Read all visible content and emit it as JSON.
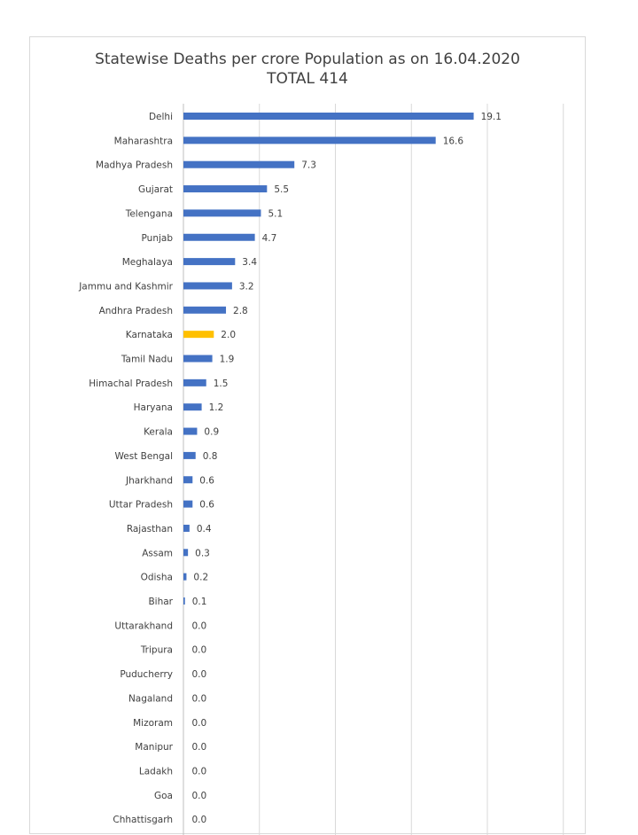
{
  "chart_data": {
    "type": "bar",
    "orientation": "horizontal",
    "title": "Statewise Deaths per crore Population as on 16.04.2020",
    "subtitle": "TOTAL 414",
    "xlabel": "",
    "ylabel": "",
    "xlim": [
      0,
      25
    ],
    "grid": "vertical",
    "legend": "none",
    "bar_color": "#4472c4",
    "highlight_color": "#ffc000",
    "highlight_category": "Karnataka",
    "categories": [
      "Delhi",
      "Maharashtra",
      "Madhya Pradesh",
      "Gujarat",
      "Telengana",
      "Punjab",
      "Meghalaya",
      "Jammu and Kashmir",
      "Andhra Pradesh",
      "Karnataka",
      "Tamil Nadu",
      "Himachal Pradesh",
      "Haryana",
      "Kerala",
      "West Bengal",
      "Jharkhand",
      "Uttar Pradesh",
      "Rajasthan",
      "Assam",
      "Odisha",
      "Bihar",
      "Uttarakhand",
      "Tripura",
      "Puducherry",
      "Nagaland",
      "Mizoram",
      "Manipur",
      "Ladakh",
      "Goa",
      "Chhattisgarh"
    ],
    "values": [
      19.1,
      16.6,
      7.3,
      5.5,
      5.1,
      4.7,
      3.4,
      3.2,
      2.8,
      2.0,
      1.9,
      1.5,
      1.2,
      0.9,
      0.8,
      0.6,
      0.6,
      0.4,
      0.3,
      0.2,
      0.1,
      0.0,
      0.0,
      0.0,
      0.0,
      0.0,
      0.0,
      0.0,
      0.0,
      0.0
    ],
    "value_labels": [
      "19.1",
      "16.6",
      "7.3",
      "5.5",
      "5.1",
      "4.7",
      "3.4",
      "3.2",
      "2.8",
      "2.0",
      "1.9",
      "1.5",
      "1.2",
      "0.9",
      "0.8",
      "0.6",
      "0.6",
      "0.4",
      "0.3",
      "0.2",
      "0.1",
      "0.0",
      "0.0",
      "0.0",
      "0.0",
      "0.0",
      "0.0",
      "0.0",
      "0.0",
      "0.0"
    ]
  }
}
